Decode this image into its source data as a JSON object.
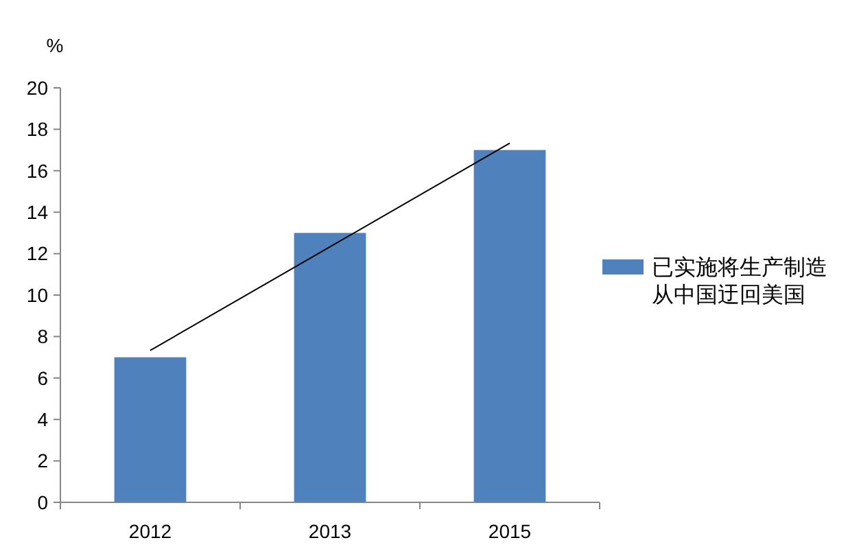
{
  "chart_data": {
    "type": "bar",
    "ylabel": "%",
    "categories": [
      "2012",
      "2013",
      "2015"
    ],
    "series": [
      {
        "name": "已实施将生产制造从中国迂回美国",
        "color": "#4f81bd",
        "values": [
          7,
          13,
          17
        ]
      },
      {
        "type": "line",
        "color": "#000000",
        "values": [
          7.33,
          12.33,
          17.33
        ]
      }
    ],
    "ylim": [
      0,
      20
    ],
    "yticks": [
      0,
      2,
      4,
      6,
      8,
      10,
      12,
      14,
      16,
      18,
      20
    ],
    "grid": false,
    "legend": "right"
  }
}
